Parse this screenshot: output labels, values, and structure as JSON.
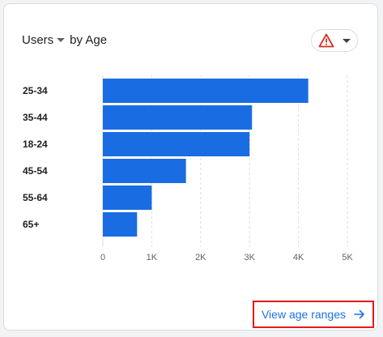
{
  "header": {
    "metric_label": "Users",
    "by_label": "by Age"
  },
  "link": {
    "label": "View age ranges"
  },
  "colors": {
    "bar": "#1a6ce3",
    "warning": "#d93025",
    "link": "#1a73e8",
    "highlight": "#e3191b"
  },
  "icons": {
    "metric_dropdown": "caret-down-icon",
    "warning": "warning-triangle-icon",
    "arrow": "arrow-right-icon"
  },
  "chart_data": {
    "type": "bar",
    "orientation": "horizontal",
    "categories": [
      "25-34",
      "35-44",
      "18-24",
      "45-54",
      "55-64",
      "65+"
    ],
    "values": [
      4200,
      3050,
      3000,
      1700,
      1000,
      700
    ],
    "xlim": [
      0,
      5000
    ],
    "x_ticks": [
      0,
      1000,
      2000,
      3000,
      4000,
      5000
    ],
    "x_tick_labels": [
      "0",
      "1K",
      "2K",
      "3K",
      "4K",
      "5K"
    ],
    "grid": "vertical-dashed"
  }
}
